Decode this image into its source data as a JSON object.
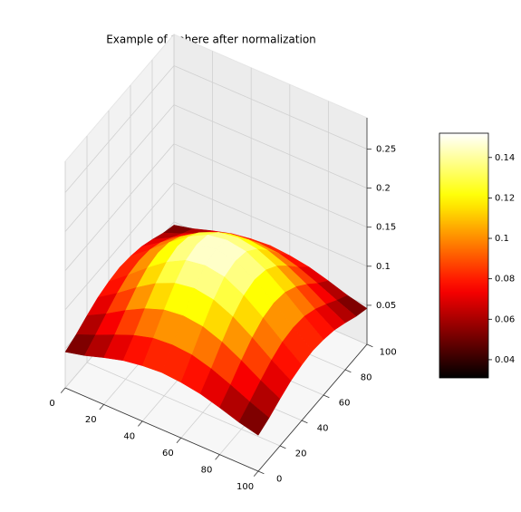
{
  "chart_data": {
    "type": "surface",
    "title": "Example of Sphere after normalization",
    "x": [
      0,
      10,
      20,
      30,
      40,
      50,
      60,
      70,
      80,
      90,
      100
    ],
    "y": [
      0,
      10,
      20,
      30,
      40,
      50,
      60,
      70,
      80,
      90,
      100
    ],
    "z": [
      [
        0.046,
        0.052,
        0.06,
        0.067,
        0.071,
        0.073,
        0.071,
        0.067,
        0.06,
        0.052,
        0.046
      ],
      [
        0.052,
        0.062,
        0.073,
        0.083,
        0.09,
        0.092,
        0.09,
        0.083,
        0.073,
        0.062,
        0.052
      ],
      [
        0.06,
        0.073,
        0.088,
        0.101,
        0.11,
        0.113,
        0.11,
        0.101,
        0.088,
        0.073,
        0.06
      ],
      [
        0.067,
        0.083,
        0.101,
        0.117,
        0.128,
        0.132,
        0.128,
        0.117,
        0.101,
        0.083,
        0.067
      ],
      [
        0.071,
        0.09,
        0.11,
        0.128,
        0.141,
        0.145,
        0.141,
        0.128,
        0.11,
        0.09,
        0.071
      ],
      [
        0.073,
        0.092,
        0.113,
        0.132,
        0.145,
        0.15,
        0.145,
        0.132,
        0.113,
        0.092,
        0.073
      ],
      [
        0.071,
        0.09,
        0.11,
        0.128,
        0.141,
        0.145,
        0.141,
        0.128,
        0.11,
        0.09,
        0.071
      ],
      [
        0.067,
        0.083,
        0.101,
        0.117,
        0.128,
        0.132,
        0.128,
        0.117,
        0.101,
        0.083,
        0.067
      ],
      [
        0.06,
        0.073,
        0.088,
        0.101,
        0.11,
        0.113,
        0.11,
        0.101,
        0.088,
        0.073,
        0.06
      ],
      [
        0.052,
        0.062,
        0.073,
        0.083,
        0.09,
        0.092,
        0.09,
        0.083,
        0.073,
        0.062,
        0.052
      ],
      [
        0.046,
        0.052,
        0.06,
        0.067,
        0.071,
        0.073,
        0.071,
        0.067,
        0.06,
        0.052,
        0.046
      ]
    ],
    "xlim": [
      0,
      100
    ],
    "xticks": [
      0,
      20,
      40,
      60,
      80,
      100
    ],
    "ylim": [
      0,
      100
    ],
    "yticks": [
      0,
      20,
      40,
      60,
      80,
      100
    ],
    "zlim": [
      0,
      0.29
    ],
    "zticks": [
      0.05,
      0.1,
      0.15,
      0.2,
      0.25
    ],
    "colormap": "hot",
    "clim": [
      0.031,
      0.152
    ],
    "colorbar_ticks": [
      0.04,
      0.06,
      0.08,
      0.1,
      0.12,
      0.14
    ],
    "grid": true
  }
}
